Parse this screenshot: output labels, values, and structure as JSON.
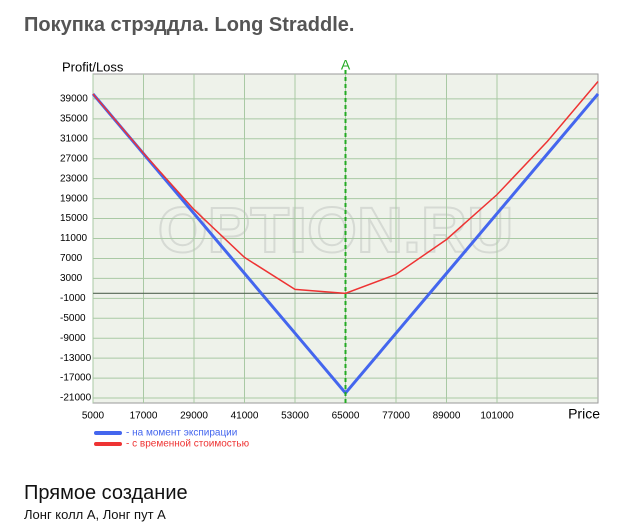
{
  "page_title": "Покупка стрэддла. Long Straddle.",
  "chart_data": {
    "type": "line",
    "y_label": "Profit/Loss",
    "x_label": "Price",
    "watermark": "OPTION.RU",
    "x": [
      5000,
      17000,
      29000,
      41000,
      53000,
      65000,
      77000,
      89000,
      101000,
      113000,
      125000
    ],
    "series": [
      {
        "name": "- на момент экспирации",
        "color": "#4466ee",
        "values": [
          40000,
          28000,
          16000,
          4000,
          -8000,
          -20000,
          -8000,
          4000,
          16000,
          28000,
          40000
        ]
      },
      {
        "name": "- с временной стоимостью",
        "color": "#ee3333",
        "values": [
          40000,
          28100,
          16800,
          7200,
          800,
          0,
          3800,
          10800,
          19800,
          30500,
          42500
        ]
      }
    ],
    "vline": {
      "x": 65000,
      "label": "A",
      "color": "#22aa22"
    },
    "xlim": [
      5000,
      125000
    ],
    "ylim": [
      -22000,
      44000
    ],
    "xticks": [
      5000,
      17000,
      29000,
      41000,
      53000,
      65000,
      77000,
      89000,
      101000
    ],
    "yticks": [
      39000,
      35000,
      31000,
      27000,
      23000,
      19000,
      15000,
      11000,
      7000,
      3000,
      -1000,
      -5000,
      -9000,
      -13000,
      -17000,
      -21000
    ],
    "zero_line": 0,
    "grid": true
  },
  "footer": {
    "heading": "Прямое создание",
    "text": "Лонг колл A, Лонг пут A"
  }
}
